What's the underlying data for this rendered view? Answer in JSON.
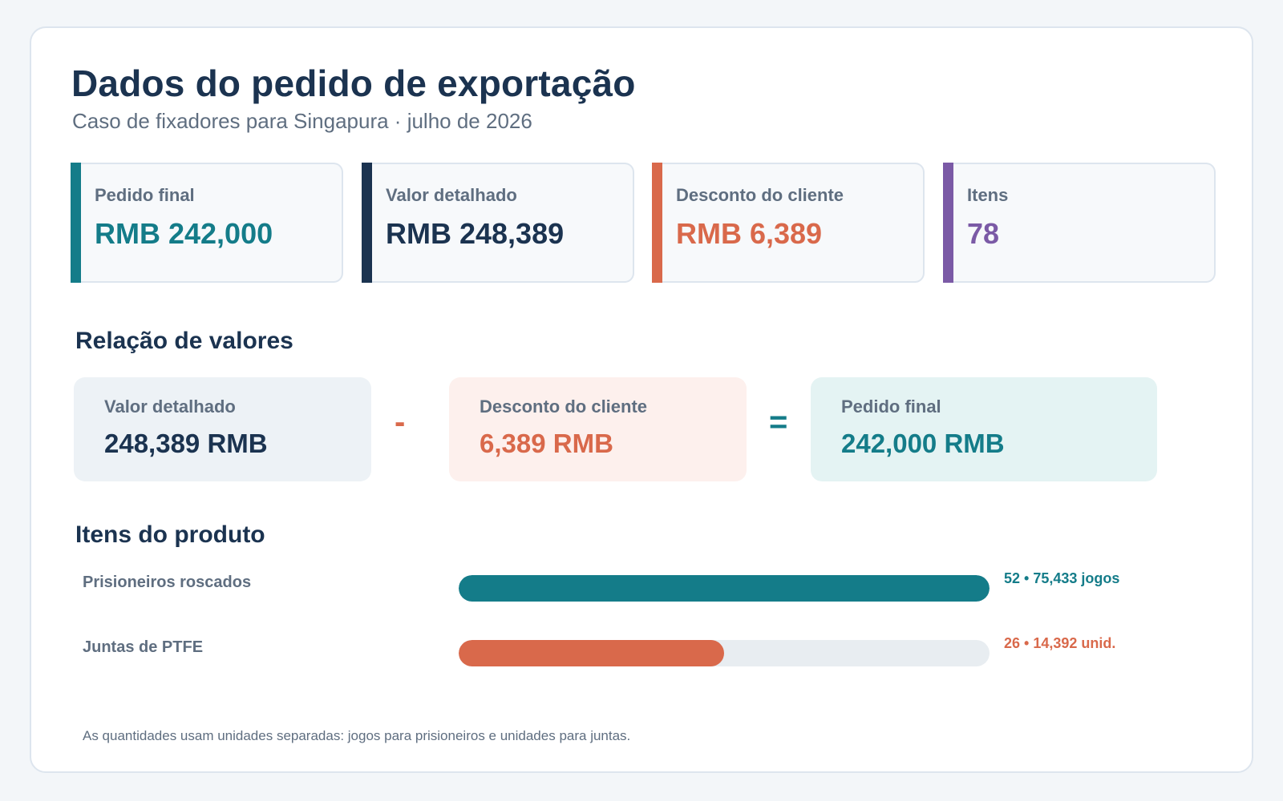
{
  "header": {
    "title": "Dados do pedido de exportação",
    "subtitle": "Caso de fixadores para Singapura · julho de 2026"
  },
  "stats": [
    {
      "label": "Pedido final",
      "value": "RMB 242,000",
      "color": "#147c89"
    },
    {
      "label": "Valor detalhado",
      "value": "RMB 248,389",
      "color": "#1b3350"
    },
    {
      "label": "Desconto do cliente",
      "value": "RMB 6,389",
      "color": "#d9694b"
    },
    {
      "label": "Itens",
      "value": "78",
      "color": "#7b5aa6"
    }
  ],
  "relation": {
    "title": "Relação de valores",
    "detailed": {
      "label": "Valor detalhado",
      "value": "248,389 RMB"
    },
    "minus": "-",
    "discount": {
      "label": "Desconto do cliente",
      "value": "6,389 RMB"
    },
    "equals": "=",
    "final": {
      "label": "Pedido final",
      "value": "242,000 RMB"
    }
  },
  "products": {
    "title": "Itens do produto",
    "items": [
      {
        "label": "Prisioneiros roscados",
        "value_text": "52 • 75,433 jogos",
        "fill_fraction": 1.0,
        "color": "#147c89"
      },
      {
        "label": "Juntas de PTFE",
        "value_text": "26 • 14,392 unid.",
        "fill_fraction": 0.5,
        "color": "#d9694b"
      }
    ]
  },
  "note": "As quantidades usam unidades separadas: jogos para prisioneiros e unidades para juntas."
}
